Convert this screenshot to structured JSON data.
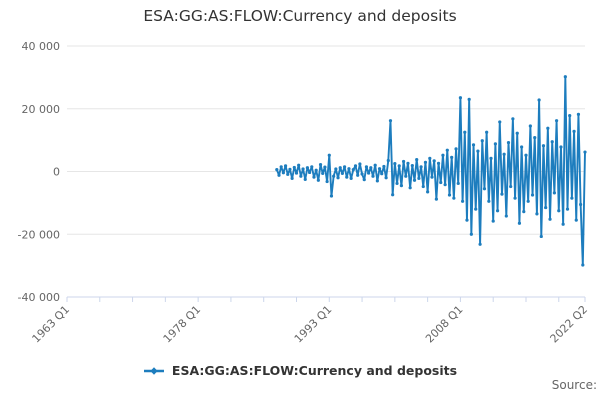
{
  "title": "ESA:GG:AS:FLOW:Currency and deposits",
  "source_label": "Source:",
  "colors": {
    "accent": "#1d7dbe",
    "grid": "#e6e6e6",
    "axis": "#ccd6eb",
    "tick_label": "#666666",
    "title": "#333333",
    "legend_text": "#333333",
    "source": "#666666"
  },
  "legend": {
    "position": "bottom",
    "items": [
      {
        "label": "ESA:GG:AS:FLOW:Currency and deposits",
        "marker": "line-with-diamond-icon"
      }
    ]
  },
  "chart_data": {
    "type": "line",
    "title": "ESA:GG:AS:FLOW:Currency and deposits",
    "xlabel": "",
    "ylabel": "",
    "grid": true,
    "legend_position": "bottom",
    "x_axis": {
      "start_label": "1963 Q1",
      "end_label": "2022 Q2",
      "total_quarters": 238,
      "tick_labels": [
        "1963 Q1",
        "1978 Q1",
        "1993 Q1",
        "2008 Q1",
        "2022 Q2"
      ],
      "tick_indices": [
        0,
        60,
        120,
        180,
        237
      ],
      "minor_tick_every_quarters": 15,
      "label_rotation_deg": -45
    },
    "y_axis": {
      "min": -40000,
      "max": 40000,
      "ticks": [
        {
          "value": 40000,
          "label": "40 000"
        },
        {
          "value": 20000,
          "label": "20 000"
        },
        {
          "value": 0,
          "label": "0"
        },
        {
          "value": -20000,
          "label": "-20 000"
        },
        {
          "value": -40000,
          "label": "-40 000"
        }
      ]
    },
    "series": [
      {
        "name": "ESA:GG:AS:FLOW:Currency and deposits",
        "frequency": "quarterly",
        "start_period": "1987 Q1",
        "end_period": "2022 Q2",
        "start_index_on_axis": 96,
        "values": [
          600,
          -1200,
          1500,
          -400,
          1800,
          -900,
          700,
          -2200,
          1300,
          -500,
          2000,
          -1500,
          800,
          -2500,
          1200,
          -300,
          1500,
          -1800,
          400,
          -2800,
          2200,
          -600,
          1400,
          -3200,
          5200,
          -7800,
          -1500,
          800,
          -2000,
          1200,
          -600,
          1500,
          -1800,
          900,
          -2200,
          600,
          1800,
          -1200,
          2400,
          -800,
          -2600,
          1500,
          -500,
          1200,
          -1500,
          2000,
          -3000,
          900,
          -700,
          1600,
          -2000,
          3500,
          16200,
          -7400,
          2500,
          -3800,
          1800,
          -4500,
          3200,
          -1500,
          2600,
          -5200,
          1900,
          -2800,
          3800,
          -2200,
          1500,
          -4800,
          2900,
          -6500,
          4200,
          -1800,
          3400,
          -8800,
          2600,
          -3500,
          5200,
          -4200,
          6800,
          -7500,
          4500,
          -8500,
          7200,
          -3800,
          23500,
          -9500,
          12500,
          -15500,
          23000,
          -20000,
          8500,
          -12000,
          6500,
          -23200,
          9800,
          -5500,
          12500,
          -9500,
          4200,
          -15800,
          8800,
          -12500,
          15800,
          -7200,
          5500,
          -14200,
          9200,
          -4800,
          16800,
          -8500,
          12200,
          -16500,
          7800,
          -12800,
          5200,
          -9500,
          14500,
          -7500,
          10800,
          -13500,
          22800,
          -20700,
          8200,
          -11500,
          13800,
          -15200,
          9500,
          -6800,
          16200,
          -12500,
          7800,
          -16800,
          30200,
          -12000,
          17800,
          -8500,
          12800,
          -15500,
          18200,
          -10500,
          -29800,
          6200
        ]
      }
    ]
  }
}
